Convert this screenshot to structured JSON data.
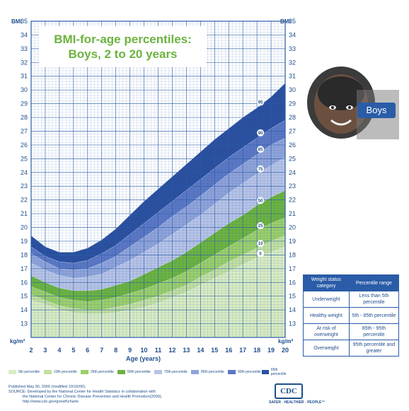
{
  "title": {
    "line1": "BMI-for-age percentiles:",
    "line2": "Boys, 2 to 20 years"
  },
  "colors": {
    "grid": "#2a5ca8",
    "p5": "#d9ecc2",
    "p10": "#c2e0a0",
    "p25": "#9bcf6a",
    "p50": "#6cb33f",
    "p75": "#b7c3e6",
    "p85": "#8fa3d9",
    "p90": "#5b77c4",
    "p95": "#2a4f9e"
  },
  "labels": {
    "bmi_left": "BMI",
    "bmi_right": "BMI",
    "unit_left": "kg/m²",
    "unit_right": "kg/m²",
    "x_axis": "Age (years)",
    "boys": "Boys"
  },
  "chart_data": {
    "type": "area",
    "title": "BMI-for-age percentiles: Boys, 2 to 20 years",
    "xlabel": "Age (years)",
    "ylabel": "BMI",
    "xlim": [
      2,
      20
    ],
    "ylim": [
      12,
      35
    ],
    "x": [
      2,
      3,
      4,
      5,
      6,
      7,
      8,
      9,
      10,
      11,
      12,
      13,
      14,
      15,
      16,
      17,
      18,
      19,
      20
    ],
    "series": [
      {
        "name": "5",
        "values": [
          14.7,
          14.4,
          14.0,
          13.8,
          13.7,
          13.7,
          13.8,
          14.0,
          14.2,
          14.5,
          14.9,
          15.3,
          15.8,
          16.3,
          16.8,
          17.3,
          17.8,
          18.2,
          18.6
        ]
      },
      {
        "name": "10",
        "values": [
          15.1,
          14.7,
          14.3,
          14.1,
          14.0,
          14.0,
          14.2,
          14.4,
          14.7,
          15.0,
          15.4,
          15.8,
          16.4,
          16.9,
          17.5,
          18.0,
          18.5,
          19.0,
          19.4
        ]
      },
      {
        "name": "25",
        "values": [
          15.7,
          15.3,
          14.9,
          14.7,
          14.6,
          14.7,
          14.9,
          15.2,
          15.5,
          15.9,
          16.3,
          16.8,
          17.4,
          18.0,
          18.6,
          19.2,
          19.8,
          20.3,
          20.7
        ]
      },
      {
        "name": "50",
        "values": [
          16.5,
          16.0,
          15.6,
          15.4,
          15.4,
          15.5,
          15.8,
          16.1,
          16.6,
          17.1,
          17.6,
          18.2,
          18.9,
          19.6,
          20.3,
          20.9,
          21.6,
          22.2,
          22.7
        ]
      },
      {
        "name": "75",
        "values": [
          17.4,
          16.9,
          16.5,
          16.3,
          16.4,
          16.6,
          17.1,
          17.6,
          18.2,
          18.8,
          19.5,
          20.2,
          20.9,
          21.7,
          22.5,
          23.2,
          23.9,
          24.5,
          25.1
        ]
      },
      {
        "name": "85",
        "values": [
          18.1,
          17.5,
          17.0,
          16.9,
          17.0,
          17.4,
          17.9,
          18.6,
          19.3,
          20.0,
          20.8,
          21.5,
          22.3,
          23.1,
          23.9,
          24.6,
          25.3,
          26.0,
          26.5
        ]
      },
      {
        "name": "90",
        "values": [
          18.6,
          17.9,
          17.5,
          17.4,
          17.6,
          18.1,
          18.7,
          19.5,
          20.3,
          21.1,
          21.9,
          22.7,
          23.5,
          24.3,
          25.1,
          25.8,
          26.5,
          27.2,
          27.8
        ]
      },
      {
        "name": "95",
        "values": [
          19.4,
          18.6,
          18.2,
          18.2,
          18.5,
          19.1,
          19.9,
          20.9,
          21.9,
          22.8,
          23.7,
          24.6,
          25.5,
          26.4,
          27.2,
          28.0,
          28.7,
          29.5,
          30.5
        ]
      }
    ],
    "yticks": [
      13,
      14,
      15,
      16,
      17,
      18,
      19,
      20,
      21,
      22,
      23,
      24,
      25,
      26,
      27,
      28,
      29,
      30,
      31,
      32,
      33,
      34,
      35
    ],
    "xticks": [
      2,
      3,
      4,
      5,
      6,
      7,
      8,
      9,
      10,
      11,
      12,
      13,
      14,
      15,
      16,
      17,
      18,
      19,
      20
    ],
    "grid": true
  },
  "legend": [
    {
      "label": "5th percentile",
      "color": "#d9ecc2"
    },
    {
      "label": "10th percentile",
      "color": "#c2e0a0"
    },
    {
      "label": "25th percentile",
      "color": "#9bcf6a"
    },
    {
      "label": "50th percentile",
      "color": "#6cb33f"
    },
    {
      "label": "75th percentile",
      "color": "#b7c3e6"
    },
    {
      "label": "85th percentile",
      "color": "#8fa3d9"
    },
    {
      "label": "90th percentile",
      "color": "#5b77c4"
    },
    {
      "label": "95th percentile",
      "color": "#2a4f9e"
    }
  ],
  "status_table": {
    "headers": [
      "Weight status category",
      "Percentile range"
    ],
    "rows": [
      [
        "Underweight",
        "Less than 5th percentile"
      ],
      [
        "Healthy weight",
        "5th - 85th percentile"
      ],
      [
        "At risk of overweight",
        "85th - 95th percentile"
      ],
      [
        "Overweight",
        "95th percentile and greater"
      ]
    ]
  },
  "footer": {
    "line1": "Published May 30, 2000 (modified 10/16/00).",
    "line2": "SOURCE: Developed by the National Center for Health Statistics in collaboration with",
    "line3": "the National Center for Chronic Disease Prevention and Health Promotion(2000).",
    "line4": "http://www.cdc.gov/growthcharts"
  },
  "logo": {
    "text": "CDC",
    "tagline": "SAFER · HEALTHIER · PEOPLE™"
  }
}
